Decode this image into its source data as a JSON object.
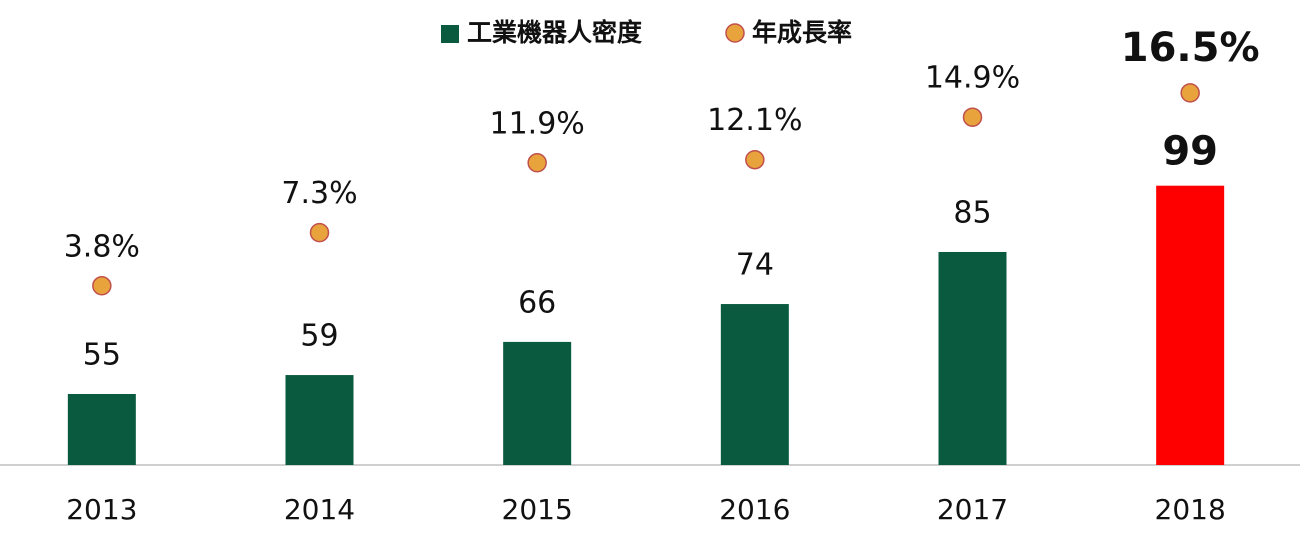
{
  "chart_data": {
    "type": "bar",
    "categories": [
      "2013",
      "2014",
      "2015",
      "2016",
      "2017",
      "2018"
    ],
    "series": [
      {
        "name": "工業機器人密度",
        "type": "bar",
        "color": "#0a5a40",
        "colors": [
          "#0a5a40",
          "#0a5a40",
          "#0a5a40",
          "#0a5a40",
          "#0a5a40",
          "#ff0000"
        ],
        "values": [
          55,
          59,
          66,
          74,
          85,
          99
        ]
      },
      {
        "name": "年成長率",
        "type": "scatter",
        "axis": "y2",
        "color": "#e8a33d",
        "values": [
          3.8,
          7.3,
          11.9,
          12.1,
          14.9,
          16.5
        ],
        "value_labels": [
          "3.8%",
          "7.3%",
          "11.9%",
          "12.1%",
          "14.9%",
          "16.5%"
        ]
      }
    ],
    "ylim": [
      40,
      134
    ],
    "y2lim": [
      -8,
      21.3
    ],
    "grid": false,
    "legend": "top"
  }
}
